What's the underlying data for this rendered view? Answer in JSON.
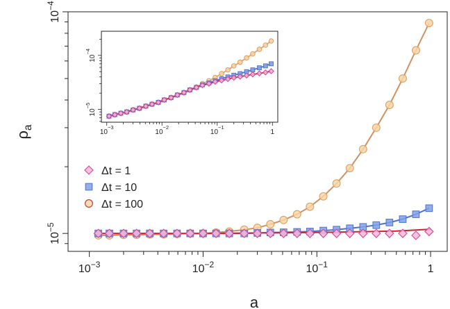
{
  "chart_data": [
    {
      "id": "main",
      "type": "scatter",
      "xlabel": "a",
      "ylabel_base": "ρ",
      "ylabel_sub": "a",
      "x_scale": "log",
      "y_scale": "log",
      "xlim": [
        0.00065,
        1.4
      ],
      "ylim": [
        8.3e-06,
        0.0001
      ],
      "x_ticks": [
        {
          "value": 0.001,
          "base": "10",
          "exp": "−3"
        },
        {
          "value": 0.01,
          "base": "10",
          "exp": "−2"
        },
        {
          "value": 0.1,
          "base": "10",
          "exp": "−1"
        },
        {
          "value": 1,
          "base": "1",
          "exp": ""
        }
      ],
      "y_ticks": [
        {
          "value": 1e-05,
          "base": "10",
          "exp": "−5"
        },
        {
          "value": 0.0001,
          "base": "10",
          "exp": "−4"
        }
      ],
      "legend_position": "left",
      "series": [
        {
          "name": "Δt = 1",
          "marker": "diamond",
          "fill": "#f3b6d6",
          "stroke": "#d4489a",
          "line_color": null,
          "x": [
            0.0012,
            0.0015,
            0.002,
            0.0026,
            0.0034,
            0.0045,
            0.0059,
            0.0077,
            0.01,
            0.013,
            0.017,
            0.023,
            0.03,
            0.039,
            0.051,
            0.067,
            0.087,
            0.114,
            0.149,
            0.195,
            0.255,
            0.333,
            0.435,
            0.569,
            0.743,
            0.97
          ],
          "y": [
            1e-05,
            1e-05,
            1e-05,
            1e-05,
            1e-05,
            1e-05,
            1e-05,
            1e-05,
            1e-05,
            1e-05,
            1e-05,
            1e-05,
            1e-05,
            1e-05,
            1e-05,
            1e-05,
            1e-05,
            1e-05,
            1e-05,
            1e-05,
            1e-05,
            1e-05,
            1e-05,
            1e-05,
            9.8e-06,
            1.02e-05
          ]
        },
        {
          "name": "Δt = 10",
          "marker": "square",
          "fill": "#7fa0e8",
          "stroke": "#5577cc",
          "line_color": "#4a6fd0",
          "x": [
            0.0012,
            0.0015,
            0.002,
            0.0026,
            0.0034,
            0.0045,
            0.0059,
            0.0077,
            0.01,
            0.013,
            0.017,
            0.023,
            0.03,
            0.039,
            0.051,
            0.067,
            0.087,
            0.114,
            0.149,
            0.195,
            0.255,
            0.333,
            0.435,
            0.569,
            0.743,
            0.97
          ],
          "y": [
            1e-05,
            1e-05,
            1e-05,
            1e-05,
            1e-05,
            1e-05,
            1e-05,
            1e-05,
            1e-05,
            1e-05,
            1e-05,
            1e-05,
            1.005e-05,
            1.01e-05,
            1.012e-05,
            1.016e-05,
            1.02e-05,
            1.03e-05,
            1.04e-05,
            1.055e-05,
            1.07e-05,
            1.09e-05,
            1.12e-05,
            1.16e-05,
            1.22e-05,
            1.3e-05
          ]
        },
        {
          "name": "Δt = 100",
          "marker": "circle",
          "fill": "#f6d6a8",
          "stroke": "#e0a060",
          "legend_stroke": "#c0392b",
          "line_color": "#d09060",
          "x": [
            0.0012,
            0.0015,
            0.002,
            0.0026,
            0.0034,
            0.0045,
            0.0059,
            0.0077,
            0.01,
            0.013,
            0.017,
            0.023,
            0.03,
            0.039,
            0.051,
            0.067,
            0.087,
            0.114,
            0.149,
            0.195,
            0.255,
            0.333,
            0.435,
            0.569,
            0.743,
            0.97
          ],
          "y": [
            9.8e-06,
            9.8e-06,
            9.85e-06,
            9.85e-06,
            9.9e-06,
            9.9e-06,
            9.95e-06,
            1e-05,
            1e-05,
            1.01e-05,
            1.02e-05,
            1.04e-05,
            1.06e-05,
            1.1e-05,
            1.15e-05,
            1.22e-05,
            1.32e-05,
            1.47e-05,
            1.68e-05,
            1.97e-05,
            2.4e-05,
            3e-05,
            3.8e-05,
            5e-05,
            6.7e-05,
            8.9e-05
          ]
        },
        {
          "name": "",
          "marker": "none",
          "line_color": "#cc2233",
          "x": [
            0.0011,
            0.01,
            0.1,
            0.5,
            1.0
          ],
          "y": [
            1e-05,
            1e-05,
            1.01e-05,
            1.025e-05,
            1.045e-05
          ]
        }
      ]
    },
    {
      "id": "inset",
      "type": "scatter",
      "x_scale": "log",
      "y_scale": "log",
      "xlim": [
        0.0008,
        1.25
      ],
      "ylim": [
        5.8e-06,
        0.00028
      ],
      "x_ticks": [
        {
          "value": 0.001,
          "base": "10",
          "exp": "−3"
        },
        {
          "value": 0.01,
          "base": "10",
          "exp": "−2"
        },
        {
          "value": 0.1,
          "base": "10",
          "exp": "−1"
        },
        {
          "value": 1,
          "base": "1",
          "exp": ""
        }
      ],
      "y_ticks": [
        {
          "value": 1e-05,
          "base": "10",
          "exp": "−5"
        },
        {
          "value": 0.0001,
          "base": "10",
          "exp": "−4"
        }
      ],
      "series": [
        {
          "name": "Δt = 100",
          "marker": "circle",
          "fill": "#f6d6a8",
          "stroke": "#e0a060",
          "line_color": "#e0a070",
          "x": [
            0.0011,
            0.0014,
            0.0018,
            0.0023,
            0.003,
            0.0039,
            0.0051,
            0.0066,
            0.0086,
            0.011,
            0.0146,
            0.019,
            0.025,
            0.032,
            0.042,
            0.054,
            0.071,
            0.092,
            0.12,
            0.156,
            0.2,
            0.26,
            0.34,
            0.44,
            0.58,
            0.75,
            0.95
          ],
          "y": [
            7.5e-06,
            8e-06,
            8.5e-06,
            9e-06,
            9.8e-06,
            1.05e-05,
            1.15e-05,
            1.25e-05,
            1.35e-05,
            1.5e-05,
            1.65e-05,
            1.85e-05,
            2.05e-05,
            2.3e-05,
            2.6e-05,
            3e-05,
            3.4e-05,
            3.9e-05,
            4.6e-05,
            5.4e-05,
            6.4e-05,
            7.5e-05,
            9e-05,
            0.000107,
            0.00013,
            0.000155,
            0.000185
          ]
        },
        {
          "name": "Δt = 10",
          "marker": "square",
          "fill": "#7fa0e8",
          "stroke": "#5577cc",
          "line_color": "#4a6fd0",
          "x": [
            0.0011,
            0.0014,
            0.0018,
            0.0023,
            0.003,
            0.0039,
            0.0051,
            0.0066,
            0.0086,
            0.011,
            0.0146,
            0.019,
            0.025,
            0.032,
            0.042,
            0.054,
            0.071,
            0.092,
            0.12,
            0.156,
            0.2,
            0.26,
            0.34,
            0.44,
            0.58,
            0.75,
            0.95
          ],
          "y": [
            7.5e-06,
            8e-06,
            8.5e-06,
            9e-06,
            9.8e-06,
            1.05e-05,
            1.15e-05,
            1.25e-05,
            1.35e-05,
            1.5e-05,
            1.65e-05,
            1.85e-05,
            2.05e-05,
            2.3e-05,
            2.55e-05,
            2.85e-05,
            3.1e-05,
            3.4e-05,
            3.7e-05,
            4e-05,
            4.3e-05,
            4.6e-05,
            5e-05,
            5.4e-05,
            5.9e-05,
            6.4e-05,
            7e-05
          ]
        },
        {
          "name": "Δt = 1",
          "marker": "diamond",
          "fill": "#f3b6d6",
          "stroke": "#d4489a",
          "line_color": "#cc2233",
          "x": [
            0.0011,
            0.0014,
            0.0018,
            0.0023,
            0.003,
            0.0039,
            0.0051,
            0.0066,
            0.0086,
            0.011,
            0.0146,
            0.019,
            0.025,
            0.032,
            0.042,
            0.054,
            0.071,
            0.092,
            0.12,
            0.156,
            0.2,
            0.26,
            0.34,
            0.44,
            0.58,
            0.75,
            0.95
          ],
          "y": [
            7.5e-06,
            8e-06,
            8.5e-06,
            9e-06,
            9.8e-06,
            1.05e-05,
            1.15e-05,
            1.25e-05,
            1.35e-05,
            1.5e-05,
            1.65e-05,
            1.85e-05,
            2.05e-05,
            2.3e-05,
            2.55e-05,
            2.8e-05,
            3e-05,
            3.25e-05,
            3.45e-05,
            3.65e-05,
            3.85e-05,
            4.05e-05,
            4.25e-05,
            4.45e-05,
            4.65e-05,
            4.85e-05,
            5.1e-05
          ]
        }
      ]
    }
  ]
}
